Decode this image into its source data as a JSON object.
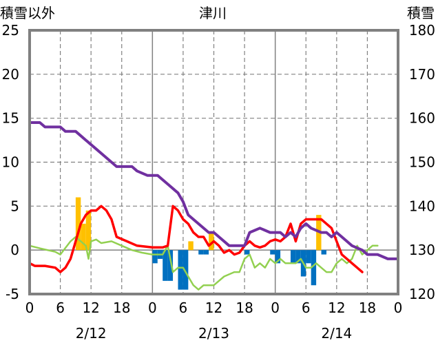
{
  "chart_data": {
    "type": "combo",
    "title": "津川",
    "left_axis_label": "積雪以外",
    "right_axis_label": "積雪",
    "left_ylim": [
      -5,
      25
    ],
    "right_ylim": [
      120,
      180
    ],
    "left_ticks": [
      "-5",
      "0",
      "5",
      "10",
      "15",
      "20",
      "25"
    ],
    "right_ticks": [
      "120",
      "130",
      "140",
      "150",
      "160",
      "170",
      "180"
    ],
    "x_range_hours": [
      0,
      72
    ],
    "x_ticks": [
      "0",
      "6",
      "12",
      "18",
      "0",
      "6",
      "12",
      "18",
      "0",
      "6",
      "12",
      "18",
      "0"
    ],
    "day_labels": [
      "2/12",
      "2/13",
      "2/14"
    ],
    "grid": true,
    "series": [
      {
        "kind": "bar",
        "color": "#ffc000",
        "values": [
          [
            9.5,
            6.0
          ],
          [
            10.5,
            3.0
          ],
          [
            11.5,
            4.5
          ],
          [
            31.5,
            1.0
          ],
          [
            35.5,
            2.0
          ],
          [
            56.5,
            4.0
          ]
        ]
      },
      {
        "kind": "bar",
        "color": "#0070c0",
        "values": [
          [
            24.5,
            -1.5
          ],
          [
            25.5,
            -1.0
          ],
          [
            26.5,
            -3.5
          ],
          [
            27.5,
            -3.5
          ],
          [
            29.5,
            -4.5
          ],
          [
            30.5,
            -4.5
          ],
          [
            33.5,
            -0.5
          ],
          [
            34.5,
            -0.5
          ],
          [
            42.5,
            -0.5
          ],
          [
            47.5,
            -0.5
          ],
          [
            48.5,
            -1.5
          ],
          [
            51.5,
            -1.5
          ],
          [
            52.5,
            -1.5
          ],
          [
            53.5,
            -3.0
          ],
          [
            54.5,
            -1.5
          ],
          [
            55.5,
            -4.0
          ],
          [
            57.5,
            -0.5
          ]
        ]
      },
      {
        "kind": "line",
        "color": "#92d050",
        "axis": "left",
        "values": [
          [
            0,
            0.5
          ],
          [
            2,
            0.2
          ],
          [
            5,
            -0.2
          ],
          [
            6,
            -0.5
          ],
          [
            8,
            1.0
          ],
          [
            9,
            1.5
          ],
          [
            10,
            1.0
          ],
          [
            11,
            0.5
          ],
          [
            11.5,
            -1.0
          ],
          [
            12,
            1.0
          ],
          [
            13,
            1.2
          ],
          [
            14,
            0.8
          ],
          [
            16,
            1.0
          ],
          [
            18,
            0.5
          ],
          [
            20,
            0.0
          ],
          [
            22,
            -0.3
          ],
          [
            24,
            -0.5
          ],
          [
            26,
            -0.5
          ],
          [
            27,
            0.5
          ],
          [
            28,
            -2.5
          ],
          [
            29,
            -2.0
          ],
          [
            30,
            -2.0
          ],
          [
            31,
            -3.0
          ],
          [
            32,
            -4.0
          ],
          [
            33,
            -4.5
          ],
          [
            34,
            -4.0
          ],
          [
            35,
            -4.0
          ],
          [
            36,
            -4.0
          ],
          [
            38,
            -3.0
          ],
          [
            40,
            -2.5
          ],
          [
            41,
            -2.5
          ],
          [
            42,
            -1.0
          ],
          [
            43,
            -0.5
          ],
          [
            44,
            -2.0
          ],
          [
            45,
            -1.5
          ],
          [
            46,
            -2.0
          ],
          [
            47,
            -1.0
          ],
          [
            48,
            -1.5
          ],
          [
            49,
            -1.0
          ],
          [
            50,
            -1.5
          ],
          [
            52,
            -1.5
          ],
          [
            53,
            -1.0
          ],
          [
            54,
            -2.0
          ],
          [
            55,
            -2.0
          ],
          [
            56,
            -1.5
          ],
          [
            57,
            -2.0
          ],
          [
            58,
            -2.5
          ],
          [
            59,
            -2.5
          ],
          [
            60,
            -1.5
          ],
          [
            61,
            -1.0
          ],
          [
            62,
            -1.5
          ],
          [
            63,
            -1.0
          ],
          [
            64,
            0.5
          ],
          [
            65,
            -0.5
          ],
          [
            66,
            0.0
          ],
          [
            67,
            0.5
          ],
          [
            68,
            0.5
          ]
        ]
      },
      {
        "kind": "line",
        "color": "#ff0000",
        "axis": "left",
        "values": [
          [
            0,
            -1.5
          ],
          [
            1,
            -1.8
          ],
          [
            3,
            -1.8
          ],
          [
            5,
            -2.0
          ],
          [
            6,
            -2.5
          ],
          [
            7,
            -2.0
          ],
          [
            8,
            -1.0
          ],
          [
            9,
            1.0
          ],
          [
            10,
            3.0
          ],
          [
            11,
            4.0
          ],
          [
            12,
            4.5
          ],
          [
            13,
            4.5
          ],
          [
            14,
            5.0
          ],
          [
            15,
            4.5
          ],
          [
            16,
            3.5
          ],
          [
            17,
            1.5
          ],
          [
            19,
            1.0
          ],
          [
            21,
            0.5
          ],
          [
            24,
            0.3
          ],
          [
            26,
            0.3
          ],
          [
            27,
            0.5
          ],
          [
            28,
            5.0
          ],
          [
            29,
            4.5
          ],
          [
            30,
            3.5
          ],
          [
            31,
            3.0
          ],
          [
            32,
            2.0
          ],
          [
            33,
            1.5
          ],
          [
            34,
            1.5
          ],
          [
            35,
            0.5
          ],
          [
            36,
            1.0
          ],
          [
            37,
            0.5
          ],
          [
            38,
            -0.3
          ],
          [
            39,
            0.0
          ],
          [
            40,
            -0.5
          ],
          [
            41,
            -0.3
          ],
          [
            42,
            0.5
          ],
          [
            43,
            1.0
          ],
          [
            44,
            0.5
          ],
          [
            45,
            0.3
          ],
          [
            46,
            0.5
          ],
          [
            47,
            1.0
          ],
          [
            48,
            1.2
          ],
          [
            49,
            1.0
          ],
          [
            50,
            1.5
          ],
          [
            51,
            3.0
          ],
          [
            52,
            1.0
          ],
          [
            53,
            3.0
          ],
          [
            54,
            3.5
          ],
          [
            55,
            3.5
          ],
          [
            56,
            3.5
          ],
          [
            57,
            3.5
          ],
          [
            58,
            3.0
          ],
          [
            59,
            2.5
          ],
          [
            60,
            1.0
          ],
          [
            61,
            -0.5
          ],
          [
            62,
            -1.0
          ],
          [
            63,
            -1.5
          ],
          [
            64,
            -2.0
          ],
          [
            65,
            -2.5
          ]
        ]
      },
      {
        "kind": "line",
        "color": "#7030a0",
        "axis": "right",
        "values": [
          [
            0,
            159
          ],
          [
            2,
            159
          ],
          [
            3,
            158
          ],
          [
            6,
            158
          ],
          [
            7,
            157
          ],
          [
            9,
            157
          ],
          [
            10,
            156
          ],
          [
            11,
            155
          ],
          [
            13,
            153
          ],
          [
            15,
            151
          ],
          [
            17,
            149
          ],
          [
            20,
            149
          ],
          [
            21,
            148
          ],
          [
            23,
            147
          ],
          [
            25,
            147
          ],
          [
            27,
            145
          ],
          [
            29,
            143
          ],
          [
            30,
            141
          ],
          [
            31,
            138
          ],
          [
            33,
            136
          ],
          [
            35,
            134
          ],
          [
            36,
            134
          ],
          [
            37,
            133
          ],
          [
            39,
            131
          ],
          [
            42,
            131
          ],
          [
            43,
            134
          ],
          [
            45,
            135
          ],
          [
            47,
            134
          ],
          [
            49,
            134
          ],
          [
            50,
            133
          ],
          [
            51,
            134
          ],
          [
            52,
            133
          ],
          [
            53,
            135
          ],
          [
            54,
            136
          ],
          [
            55,
            135
          ],
          [
            57,
            134
          ],
          [
            58,
            134
          ],
          [
            59,
            133
          ],
          [
            60,
            134
          ],
          [
            61,
            133
          ],
          [
            62,
            132
          ],
          [
            63,
            131
          ],
          [
            65,
            130
          ],
          [
            66,
            129
          ],
          [
            68,
            129
          ],
          [
            70,
            128
          ],
          [
            72,
            128
          ]
        ]
      }
    ]
  }
}
